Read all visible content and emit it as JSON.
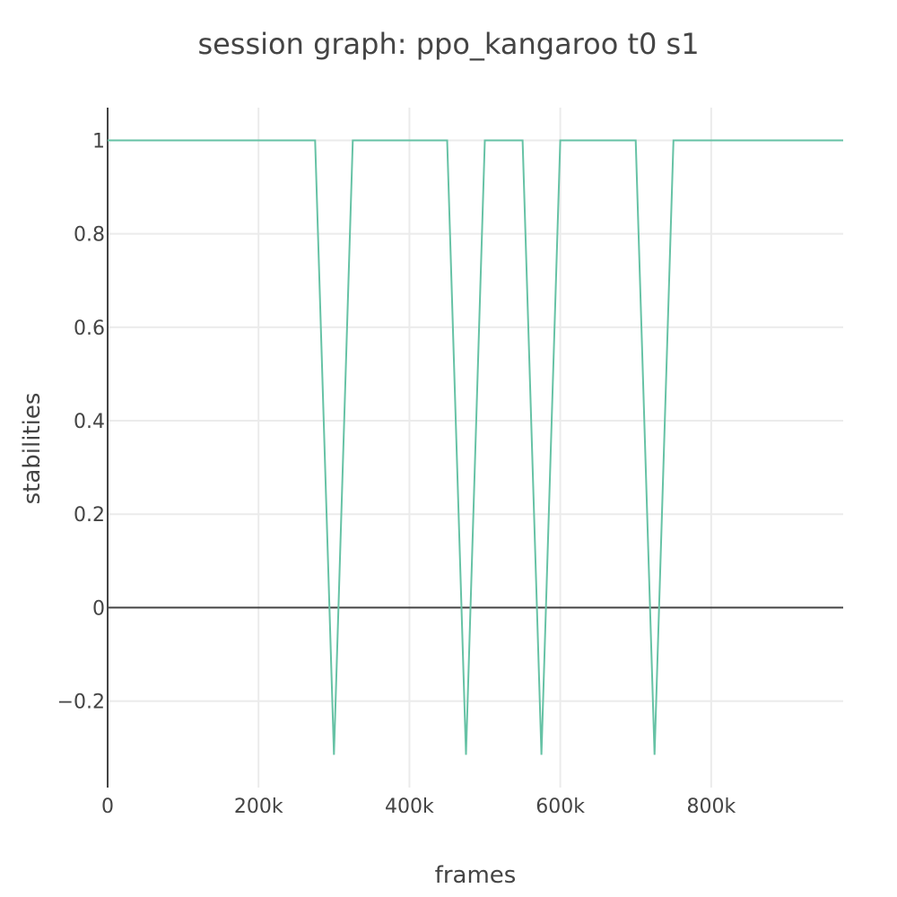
{
  "chart_data": {
    "type": "line",
    "title": "session graph: ppo_kangaroo t0 s1",
    "xlabel": "frames",
    "ylabel": "stabilities",
    "xlim": [
      0,
      975000
    ],
    "ylim": [
      -0.385,
      1.07
    ],
    "x_ticks": [
      {
        "value": 0,
        "label": "0"
      },
      {
        "value": 200000,
        "label": "200k"
      },
      {
        "value": 400000,
        "label": "400k"
      },
      {
        "value": 600000,
        "label": "600k"
      },
      {
        "value": 800000,
        "label": "800k"
      }
    ],
    "y_ticks": [
      {
        "value": 1,
        "label": "1"
      },
      {
        "value": 0.8,
        "label": "0.8"
      },
      {
        "value": 0.6,
        "label": "0.6"
      },
      {
        "value": 0.4,
        "label": "0.4"
      },
      {
        "value": 0.2,
        "label": "0.2"
      },
      {
        "value": 0,
        "label": "0"
      },
      {
        "value": -0.2,
        "label": "−0.2"
      }
    ],
    "grid": true,
    "line_color": "#66c2a5",
    "series": [
      {
        "x": [
          0,
          275000,
          300000,
          325000,
          450000,
          475000,
          500000,
          550000,
          575000,
          600000,
          700000,
          725000,
          750000,
          975000
        ],
        "values": [
          1,
          1,
          -0.315,
          1,
          1,
          -0.315,
          1,
          1,
          -0.315,
          1,
          1,
          -0.315,
          1,
          1
        ]
      }
    ]
  }
}
